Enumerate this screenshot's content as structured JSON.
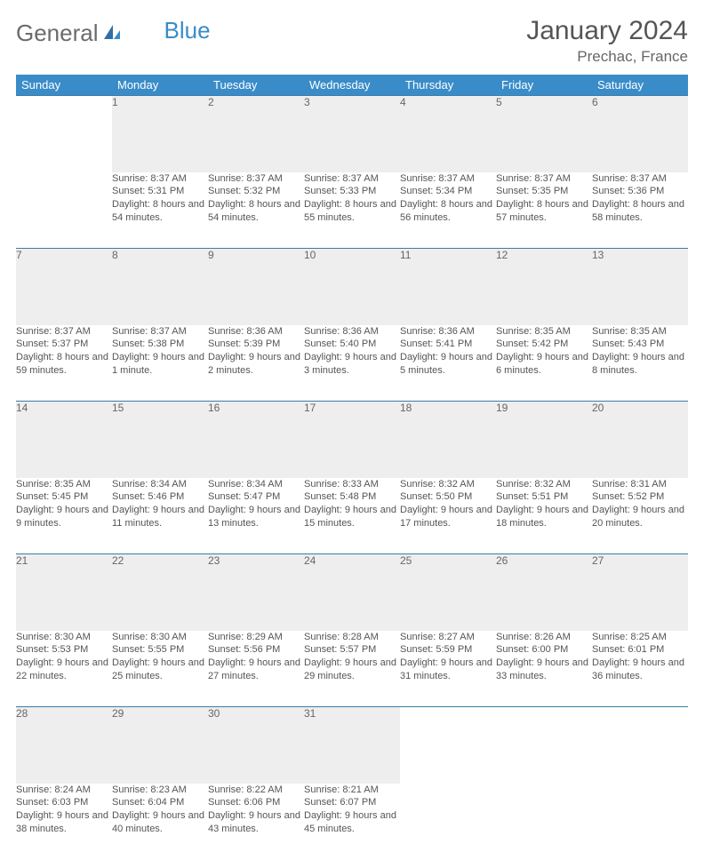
{
  "logo": {
    "word1": "General",
    "word2": "Blue"
  },
  "title": "January 2024",
  "location": "Prechac, France",
  "colors": {
    "header_bg": "#3a8cc9",
    "week_divider": "#3a7ba8",
    "daynum_bg": "#eeeeee",
    "text": "#555555"
  },
  "daysOfWeek": [
    "Sunday",
    "Monday",
    "Tuesday",
    "Wednesday",
    "Thursday",
    "Friday",
    "Saturday"
  ],
  "weeks": [
    [
      null,
      {
        "n": "1",
        "sunrise": "8:37 AM",
        "sunset": "5:31 PM",
        "daylight": "8 hours and 54 minutes."
      },
      {
        "n": "2",
        "sunrise": "8:37 AM",
        "sunset": "5:32 PM",
        "daylight": "8 hours and 54 minutes."
      },
      {
        "n": "3",
        "sunrise": "8:37 AM",
        "sunset": "5:33 PM",
        "daylight": "8 hours and 55 minutes."
      },
      {
        "n": "4",
        "sunrise": "8:37 AM",
        "sunset": "5:34 PM",
        "daylight": "8 hours and 56 minutes."
      },
      {
        "n": "5",
        "sunrise": "8:37 AM",
        "sunset": "5:35 PM",
        "daylight": "8 hours and 57 minutes."
      },
      {
        "n": "6",
        "sunrise": "8:37 AM",
        "sunset": "5:36 PM",
        "daylight": "8 hours and 58 minutes."
      }
    ],
    [
      {
        "n": "7",
        "sunrise": "8:37 AM",
        "sunset": "5:37 PM",
        "daylight": "8 hours and 59 minutes."
      },
      {
        "n": "8",
        "sunrise": "8:37 AM",
        "sunset": "5:38 PM",
        "daylight": "9 hours and 1 minute."
      },
      {
        "n": "9",
        "sunrise": "8:36 AM",
        "sunset": "5:39 PM",
        "daylight": "9 hours and 2 minutes."
      },
      {
        "n": "10",
        "sunrise": "8:36 AM",
        "sunset": "5:40 PM",
        "daylight": "9 hours and 3 minutes."
      },
      {
        "n": "11",
        "sunrise": "8:36 AM",
        "sunset": "5:41 PM",
        "daylight": "9 hours and 5 minutes."
      },
      {
        "n": "12",
        "sunrise": "8:35 AM",
        "sunset": "5:42 PM",
        "daylight": "9 hours and 6 minutes."
      },
      {
        "n": "13",
        "sunrise": "8:35 AM",
        "sunset": "5:43 PM",
        "daylight": "9 hours and 8 minutes."
      }
    ],
    [
      {
        "n": "14",
        "sunrise": "8:35 AM",
        "sunset": "5:45 PM",
        "daylight": "9 hours and 9 minutes."
      },
      {
        "n": "15",
        "sunrise": "8:34 AM",
        "sunset": "5:46 PM",
        "daylight": "9 hours and 11 minutes."
      },
      {
        "n": "16",
        "sunrise": "8:34 AM",
        "sunset": "5:47 PM",
        "daylight": "9 hours and 13 minutes."
      },
      {
        "n": "17",
        "sunrise": "8:33 AM",
        "sunset": "5:48 PM",
        "daylight": "9 hours and 15 minutes."
      },
      {
        "n": "18",
        "sunrise": "8:32 AM",
        "sunset": "5:50 PM",
        "daylight": "9 hours and 17 minutes."
      },
      {
        "n": "19",
        "sunrise": "8:32 AM",
        "sunset": "5:51 PM",
        "daylight": "9 hours and 18 minutes."
      },
      {
        "n": "20",
        "sunrise": "8:31 AM",
        "sunset": "5:52 PM",
        "daylight": "9 hours and 20 minutes."
      }
    ],
    [
      {
        "n": "21",
        "sunrise": "8:30 AM",
        "sunset": "5:53 PM",
        "daylight": "9 hours and 22 minutes."
      },
      {
        "n": "22",
        "sunrise": "8:30 AM",
        "sunset": "5:55 PM",
        "daylight": "9 hours and 25 minutes."
      },
      {
        "n": "23",
        "sunrise": "8:29 AM",
        "sunset": "5:56 PM",
        "daylight": "9 hours and 27 minutes."
      },
      {
        "n": "24",
        "sunrise": "8:28 AM",
        "sunset": "5:57 PM",
        "daylight": "9 hours and 29 minutes."
      },
      {
        "n": "25",
        "sunrise": "8:27 AM",
        "sunset": "5:59 PM",
        "daylight": "9 hours and 31 minutes."
      },
      {
        "n": "26",
        "sunrise": "8:26 AM",
        "sunset": "6:00 PM",
        "daylight": "9 hours and 33 minutes."
      },
      {
        "n": "27",
        "sunrise": "8:25 AM",
        "sunset": "6:01 PM",
        "daylight": "9 hours and 36 minutes."
      }
    ],
    [
      {
        "n": "28",
        "sunrise": "8:24 AM",
        "sunset": "6:03 PM",
        "daylight": "9 hours and 38 minutes."
      },
      {
        "n": "29",
        "sunrise": "8:23 AM",
        "sunset": "6:04 PM",
        "daylight": "9 hours and 40 minutes."
      },
      {
        "n": "30",
        "sunrise": "8:22 AM",
        "sunset": "6:06 PM",
        "daylight": "9 hours and 43 minutes."
      },
      {
        "n": "31",
        "sunrise": "8:21 AM",
        "sunset": "6:07 PM",
        "daylight": "9 hours and 45 minutes."
      },
      null,
      null,
      null
    ]
  ],
  "labels": {
    "sunrise": "Sunrise:",
    "sunset": "Sunset:",
    "daylight": "Daylight:"
  }
}
